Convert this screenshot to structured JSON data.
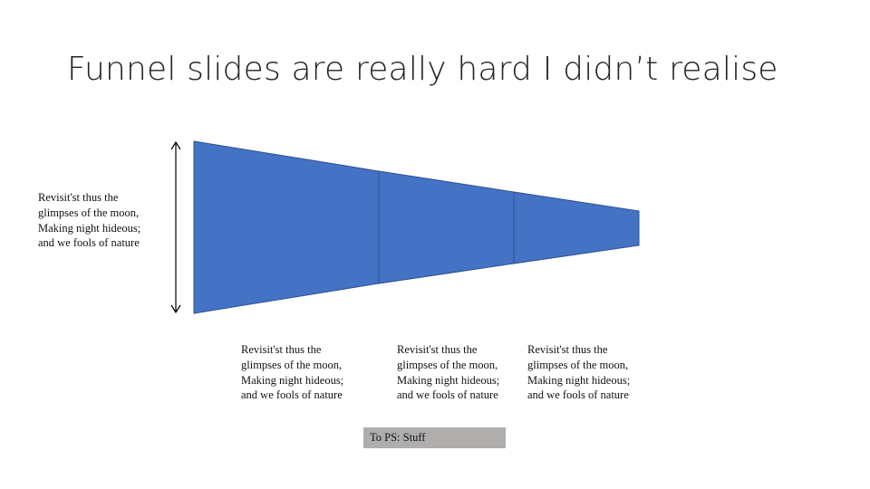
{
  "slide": {
    "title": "Funnel slides are really hard I didn’t realise",
    "captions": {
      "left": "Revisit'st thus the\nglimpses of the moon,\nMaking night hideous;\nand we fools of nature",
      "stage_1": "Revisit'st thus the\nglimpses of the moon,\nMaking night hideous;\nand we fools of nature",
      "stage_2": "Revisit'st thus the\nglimpses of the moon,\nMaking night hideous;\nand we fools of nature",
      "stage_3": "Revisit'st thus the\nglimpses of the moon,\nMaking night hideous;\nand we fools of nature"
    },
    "ps_box": {
      "label": "To PS: Stuff"
    }
  },
  "colors": {
    "funnel_fill": "#4472c4",
    "funnel_stroke": "#2f528f",
    "arrow": "#000000",
    "ps_box": "#b0adad"
  }
}
